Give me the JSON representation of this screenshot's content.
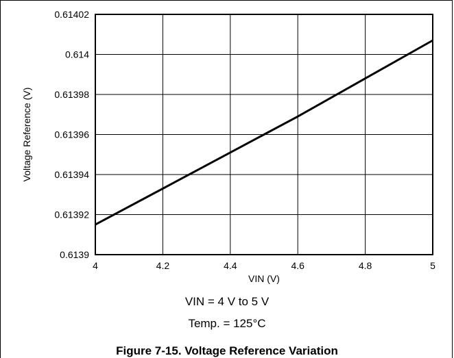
{
  "chart_data": {
    "type": "line",
    "title": "Figure 7-15. Voltage Reference Variation",
    "xlabel": "VIN (V)",
    "ylabel": "Voltage Reference (V)",
    "xlim": [
      4,
      5
    ],
    "ylim": [
      0.6139,
      0.61402
    ],
    "x_ticks": [
      "4",
      "4.2",
      "4.4",
      "4.6",
      "4.8",
      "5"
    ],
    "y_ticks": [
      "0.6139",
      "0.61392",
      "0.61394",
      "0.61396",
      "0.61398",
      "0.614",
      "0.61402"
    ],
    "grid": true,
    "line_color": "#000000",
    "series": [
      {
        "x": [
          4.0,
          4.2,
          4.4,
          4.6,
          4.8,
          5.0
        ],
        "values": [
          0.613915,
          0.613933,
          0.613951,
          0.613969,
          0.613988,
          0.614007
        ]
      }
    ],
    "annotations": [
      "VIN = 4 V to 5 V",
      "Temp. = 125°C"
    ]
  }
}
